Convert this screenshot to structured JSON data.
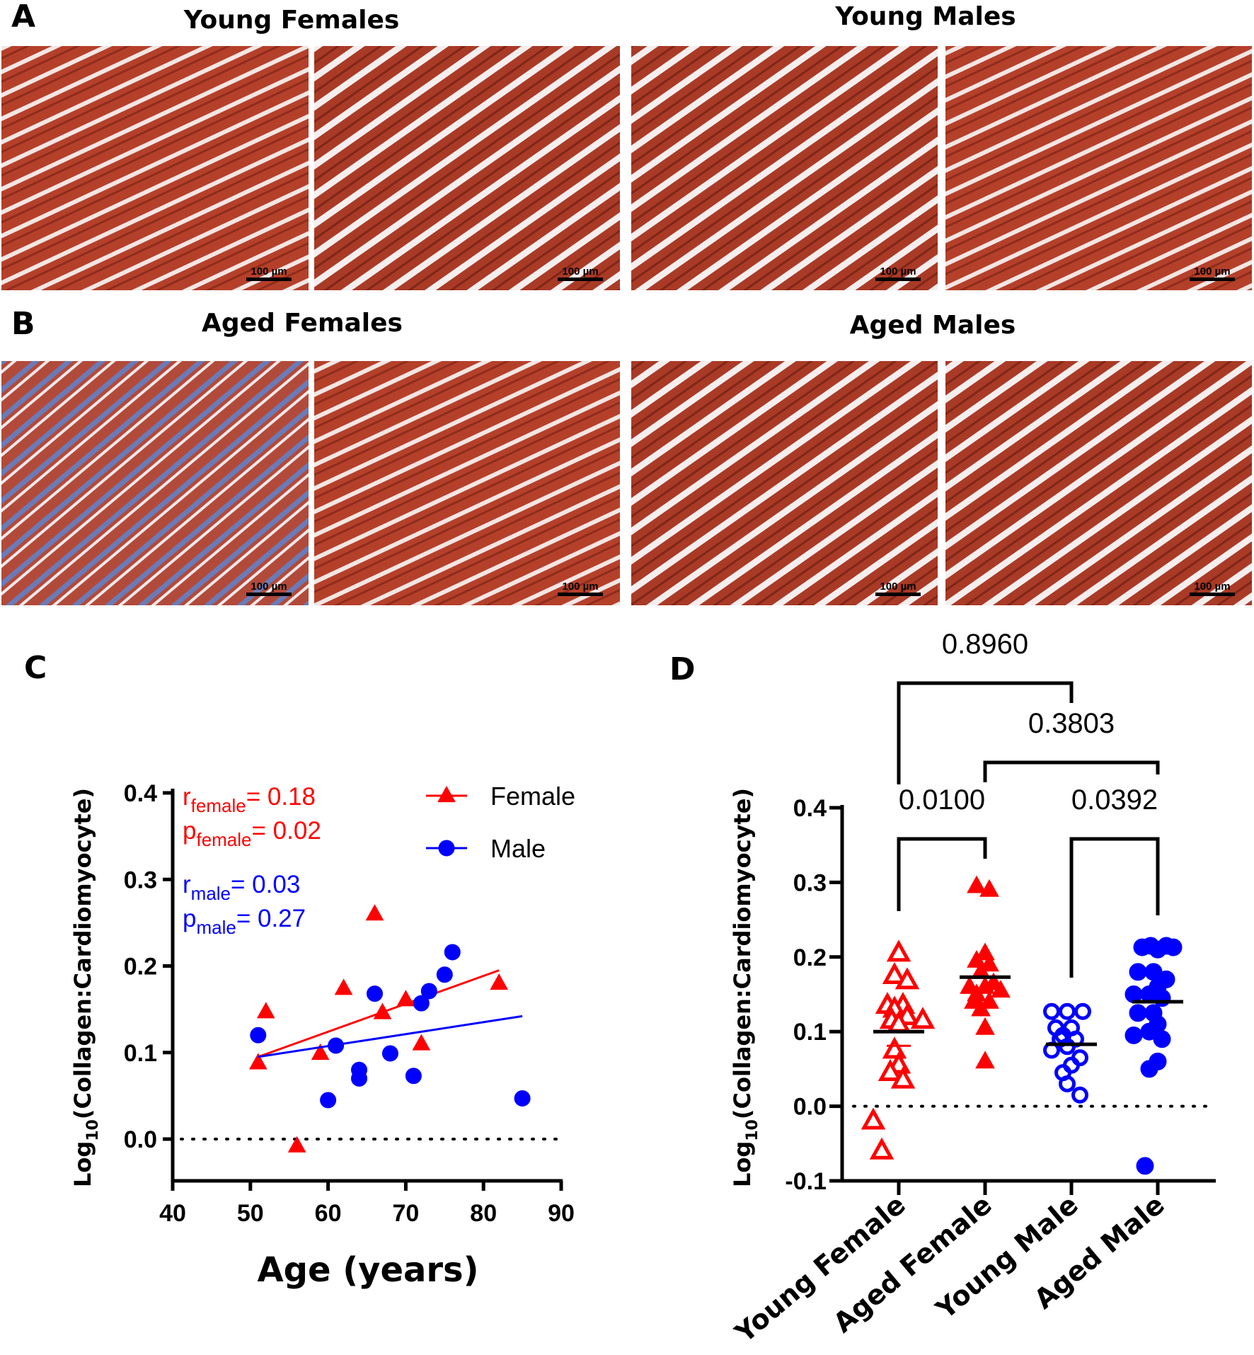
{
  "panels": {
    "A": {
      "letter": "A",
      "left_title": "Young Females",
      "right_title": "Young Males"
    },
    "B": {
      "letter": "B",
      "left_title": "Aged Females",
      "right_title": "Aged Males"
    },
    "C": {
      "letter": "C"
    },
    "D": {
      "letter": "D"
    }
  },
  "scale_bar_label": "100 µm",
  "chart_data": [
    {
      "type": "scatter",
      "xlabel": "Age (years)",
      "ylabel": "Log10(Collagen:Cardiomyocyte)",
      "xlim": [
        40,
        90
      ],
      "ylim": [
        -0.05,
        0.4
      ],
      "xticks": [
        "40",
        "50",
        "60",
        "70",
        "80",
        "90"
      ],
      "yticks": [
        "0.0",
        "0.1",
        "0.2",
        "0.3",
        "0.4"
      ],
      "reference_line_y": 0,
      "legend": "top-right",
      "colors": {
        "Female": "#ff0000",
        "Male": "#0000ff"
      },
      "annotations": {
        "r_female": "0.18",
        "p_female": "0.02",
        "r_male": "0.03",
        "p_male": "0.27"
      },
      "series": [
        {
          "name": "Female",
          "marker": "triangle",
          "x": [
            51,
            52,
            56,
            59,
            62,
            66,
            67,
            70,
            72,
            82
          ],
          "y": [
            0.088,
            0.147,
            -0.008,
            0.099,
            0.174,
            0.26,
            0.146,
            0.161,
            0.11,
            0.18
          ],
          "fit": {
            "x": [
              51,
              82
            ],
            "y": [
              0.095,
              0.195
            ]
          }
        },
        {
          "name": "Male",
          "marker": "circle",
          "x": [
            51,
            60,
            61,
            64,
            64,
            66,
            68,
            71,
            72,
            73,
            75,
            76,
            85
          ],
          "y": [
            0.12,
            0.045,
            0.108,
            0.08,
            0.07,
            0.168,
            0.099,
            0.073,
            0.157,
            0.171,
            0.19,
            0.216,
            0.047
          ],
          "fit": {
            "x": [
              51,
              85
            ],
            "y": [
              0.095,
              0.142
            ]
          }
        }
      ]
    },
    {
      "type": "scatter",
      "ylabel": "Log10(Collagen:Cardiomyocyte)",
      "ylim": [
        -0.1,
        0.4
      ],
      "yticks": [
        "-0.1",
        "0.0",
        "0.1",
        "0.2",
        "0.3",
        "0.4"
      ],
      "categories": [
        "Young Female",
        "Aged Female",
        "Young Male",
        "Aged Male"
      ],
      "reference_line_y": 0,
      "series": [
        {
          "name": "Young Female",
          "color": "#ff0000",
          "marker": "open-triangle",
          "mean": 0.1,
          "sem_low": 0.081,
          "values": [
            0.205,
            0.175,
            0.168,
            0.135,
            0.135,
            0.13,
            0.12,
            0.115,
            0.115,
            0.11,
            0.075,
            0.055,
            0.045,
            0.035,
            -0.02,
            -0.06
          ]
        },
        {
          "name": "Aged Female",
          "color": "#ff0000",
          "marker": "triangle",
          "mean": 0.173,
          "values": [
            0.295,
            0.29,
            0.205,
            0.195,
            0.19,
            0.18,
            0.165,
            0.16,
            0.16,
            0.155,
            0.15,
            0.14,
            0.14,
            0.13,
            0.105,
            0.06
          ]
        },
        {
          "name": "Young Male",
          "color": "#0000ff",
          "marker": "open-circle",
          "mean": 0.083,
          "values": [
            0.127,
            0.127,
            0.127,
            0.105,
            0.105,
            0.095,
            0.09,
            0.09,
            0.08,
            0.075,
            0.065,
            0.055,
            0.045,
            0.03,
            0.015
          ]
        },
        {
          "name": "Aged Male",
          "color": "#0000ff",
          "marker": "circle",
          "mean": 0.14,
          "values": [
            0.215,
            0.21,
            0.215,
            0.213,
            0.213,
            0.18,
            0.18,
            0.17,
            0.16,
            0.15,
            0.15,
            0.145,
            0.125,
            0.125,
            0.11,
            0.1,
            0.095,
            0.09,
            0.06,
            0.05,
            -0.08
          ]
        }
      ],
      "comparisons": [
        {
          "groups": [
            "Young Female",
            "Young Male"
          ],
          "p": "0.8960"
        },
        {
          "groups": [
            "Aged Female",
            "Aged Male"
          ],
          "p": "0.3803"
        },
        {
          "groups": [
            "Young Female",
            "Aged Female"
          ],
          "p": "0.0100"
        },
        {
          "groups": [
            "Young Male",
            "Aged Male"
          ],
          "p": "0.0392"
        }
      ]
    }
  ]
}
